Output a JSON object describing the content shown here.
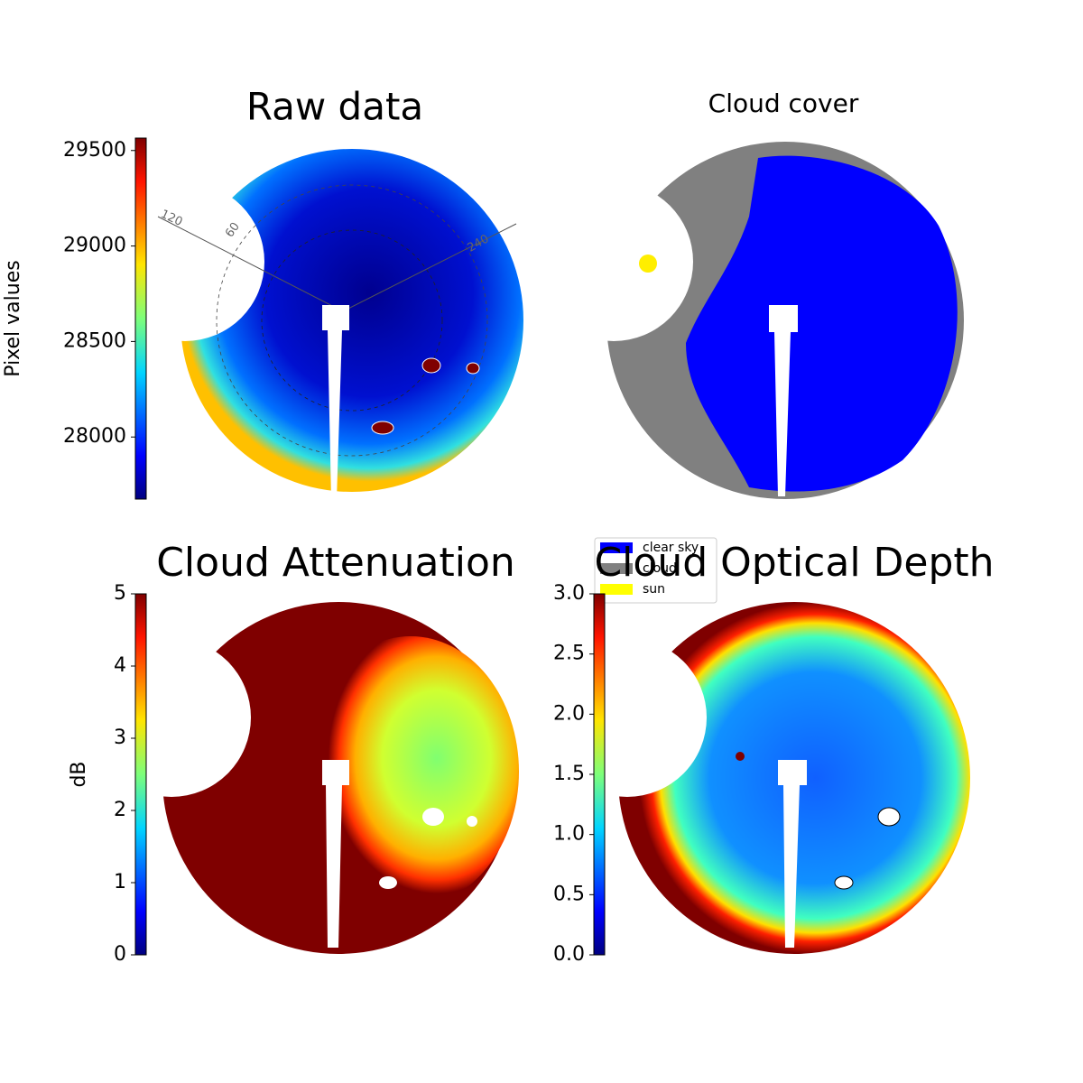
{
  "chart_data": [
    {
      "type": "image",
      "title": "Raw data",
      "ylabel": "Pixel values",
      "cmap": "jet",
      "ylim": [
        27675,
        29565
      ],
      "yticks": [
        28000,
        28500,
        29000,
        29500
      ],
      "annotations": [
        "120",
        "60",
        "240"
      ]
    },
    {
      "type": "image",
      "title": "Cloud cover",
      "legend": {
        "labels": [
          "clear sky",
          "cloud",
          "sun"
        ],
        "colors": [
          "#0000ff",
          "#808080",
          "#ffff00"
        ]
      }
    },
    {
      "type": "image",
      "title": "Cloud Attenuation",
      "ylabel": "dB",
      "cmap": "jet",
      "ylim": [
        0,
        5
      ],
      "yticks": [
        0,
        1,
        2,
        3,
        4,
        5
      ]
    },
    {
      "type": "image",
      "title": "Cloud Optical Depth",
      "cmap": "jet",
      "ylim": [
        0,
        3
      ],
      "yticks": [
        {
          "value": 0,
          "label": "0.0"
        },
        0.5,
        {
          "value": 1,
          "label": "1.0"
        },
        1.5,
        {
          "value": 2,
          "label": "2.0"
        },
        2.5,
        {
          "value": 3,
          "label": "3.0"
        }
      ]
    }
  ]
}
